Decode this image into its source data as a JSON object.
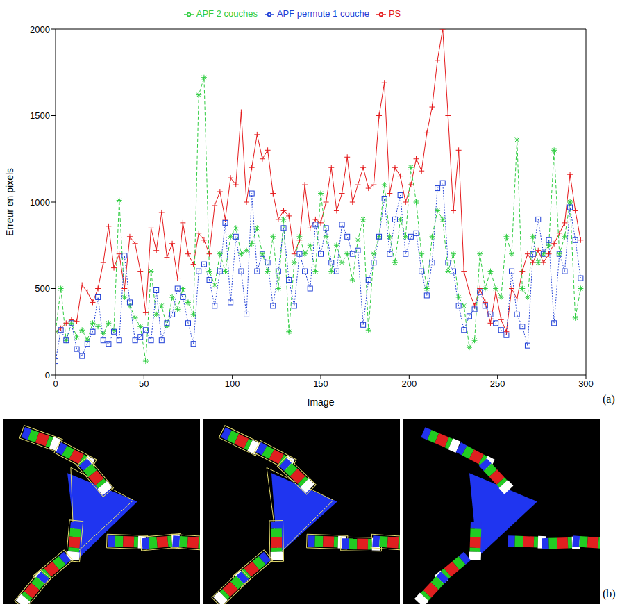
{
  "chart_data": {
    "type": "line",
    "x_label": "Image",
    "y_label": "Erreur en pixels",
    "xlim": [
      0,
      300
    ],
    "xticks": [
      0,
      50,
      100,
      150,
      200,
      250,
      300
    ],
    "ylim": [
      0,
      2000
    ],
    "yticks": [
      0,
      500,
      1000,
      1500,
      2000
    ],
    "legend": "top",
    "x": [
      0,
      3,
      6,
      9,
      12,
      15,
      18,
      21,
      24,
      27,
      30,
      33,
      36,
      39,
      42,
      45,
      48,
      51,
      54,
      57,
      60,
      63,
      66,
      69,
      72,
      75,
      78,
      81,
      84,
      87,
      90,
      93,
      96,
      99,
      102,
      105,
      108,
      111,
      114,
      117,
      120,
      123,
      126,
      129,
      132,
      135,
      138,
      141,
      144,
      147,
      150,
      153,
      156,
      159,
      162,
      165,
      168,
      171,
      174,
      177,
      180,
      183,
      186,
      189,
      192,
      195,
      198,
      201,
      204,
      207,
      210,
      213,
      216,
      219,
      222,
      225,
      228,
      231,
      234,
      237,
      240,
      243,
      246,
      249,
      252,
      255,
      258,
      261,
      264,
      267,
      270,
      273,
      276,
      279,
      282,
      285,
      288,
      291,
      294,
      297
    ],
    "series": [
      {
        "name": "PS",
        "color": "#e41a1c",
        "marker": "plus",
        "line_style": "solid",
        "values": [
          250,
          270,
          300,
          320,
          310,
          520,
          480,
          420,
          500,
          650,
          860,
          620,
          700,
          500,
          800,
          760,
          600,
          360,
          850,
          720,
          940,
          680,
          760,
          560,
          880,
          700,
          640,
          820,
          780,
          700,
          980,
          1060,
          900,
          1140,
          1100,
          1520,
          1000,
          1200,
          1390,
          1250,
          1300,
          1050,
          900,
          950,
          920,
          700,
          780,
          1100,
          850,
          900,
          880,
          1000,
          1200,
          950,
          1050,
          1260,
          1000,
          1100,
          1200,
          1080,
          1100,
          1500,
          1690,
          1050,
          1200,
          1150,
          1000,
          1100,
          1250,
          1180,
          1400,
          1550,
          1820,
          2000,
          1500,
          950,
          1300,
          600,
          480,
          400,
          500,
          420,
          300,
          480,
          320,
          250,
          500,
          440,
          600,
          700,
          650,
          720,
          650,
          700,
          760,
          820,
          880,
          1160,
          950,
          780
        ]
      },
      {
        "name": "APF 2 couches",
        "color": "#2ecc40",
        "marker": "star",
        "line_style": "dashed",
        "values": [
          250,
          500,
          200,
          300,
          220,
          260,
          200,
          300,
          280,
          240,
          300,
          260,
          1010,
          450,
          400,
          330,
          280,
          80,
          600,
          350,
          400,
          280,
          450,
          380,
          500,
          420,
          350,
          1620,
          1720,
          600,
          520,
          700,
          600,
          800,
          850,
          700,
          720,
          760,
          850,
          700,
          600,
          800,
          500,
          900,
          250,
          650,
          800,
          700,
          750,
          600,
          1050,
          800,
          600,
          750,
          650,
          700,
          550,
          780,
          900,
          260,
          700,
          800,
          1100,
          800,
          650,
          900,
          800,
          1200,
          1000,
          700,
          500,
          800,
          950,
          900,
          600,
          700,
          450,
          400,
          160,
          200,
          700,
          500,
          600,
          500,
          450,
          800,
          700,
          1360,
          500,
          450,
          800,
          650,
          700,
          750,
          1300,
          700,
          800,
          1000,
          330,
          500
        ]
      },
      {
        "name": "APF permute 1 couche",
        "color": "#1f3fd6",
        "marker": "square",
        "line_style": "dotted",
        "values": [
          80,
          260,
          200,
          300,
          150,
          110,
          180,
          250,
          450,
          200,
          180,
          250,
          200,
          690,
          420,
          200,
          220,
          260,
          200,
          490,
          200,
          300,
          350,
          500,
          450,
          300,
          180,
          600,
          640,
          550,
          400,
          600,
          880,
          420,
          800,
          600,
          350,
          1050,
          600,
          700,
          650,
          400,
          600,
          850,
          550,
          400,
          700,
          600,
          500,
          870,
          700,
          850,
          650,
          600,
          870,
          800,
          700,
          720,
          290,
          550,
          650,
          800,
          1020,
          700,
          900,
          1040,
          700,
          800,
          820,
          600,
          460,
          650,
          1080,
          1110,
          650,
          600,
          400,
          260,
          340,
          380,
          480,
          400,
          350,
          300,
          260,
          230,
          600,
          350,
          280,
          170,
          700,
          900,
          700,
          780,
          300,
          700,
          600,
          970,
          780,
          560
        ]
      }
    ]
  },
  "panels": [
    {
      "label": "(a)"
    },
    {
      "label": "(b)"
    }
  ]
}
